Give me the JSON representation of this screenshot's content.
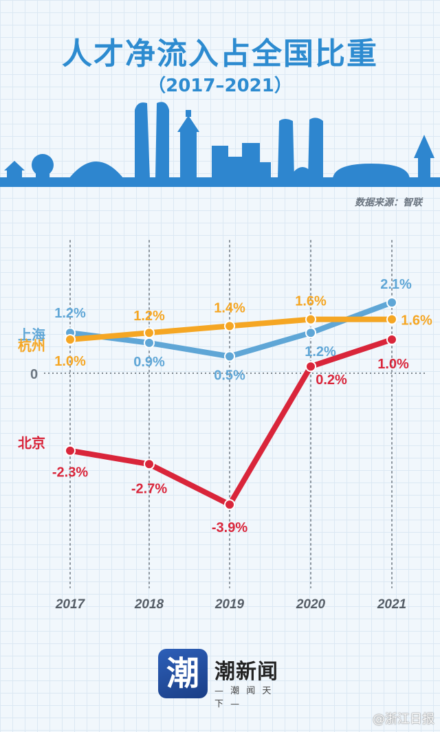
{
  "header": {
    "title": "人才净流入占全国比重",
    "subtitle": "（2017–2021）",
    "source": "数据来源：智联"
  },
  "colors": {
    "shanghai": "#5fa6d6",
    "hangzhou": "#f5a623",
    "beijing": "#d9253a",
    "title": "#2d8bd0",
    "skyline": "#2e86cf"
  },
  "chart_data": {
    "type": "line",
    "x": [
      "2017",
      "2018",
      "2019",
      "2020",
      "2021"
    ],
    "zero_label": "0",
    "ylim": [
      -4.5,
      2.6
    ],
    "grid": false,
    "series": [
      {
        "name": "上海",
        "key": "shanghai",
        "values": [
          1.2,
          0.9,
          0.5,
          1.2,
          2.1
        ],
        "labels": [
          "1.2%",
          "0.9%",
          "0.5%",
          "1.2%",
          "2.1%"
        ]
      },
      {
        "name": "杭州",
        "key": "hangzhou",
        "values": [
          1.0,
          1.2,
          1.4,
          1.6,
          1.6
        ],
        "labels": [
          "1.0%",
          "1.2%",
          "1.4%",
          "1.6%",
          "1.6%"
        ]
      },
      {
        "name": "北京",
        "key": "beijing",
        "values": [
          -2.3,
          -2.7,
          -3.9,
          0.2,
          1.0
        ],
        "labels": [
          "-2.3%",
          "-2.7%",
          "-3.9%",
          "0.2%",
          "1.0%"
        ]
      }
    ]
  },
  "brand": {
    "logo_char": "潮",
    "name": "潮新闻",
    "slogan": "— 潮 闻 天 下 —"
  },
  "watermark": "@浙江日报"
}
